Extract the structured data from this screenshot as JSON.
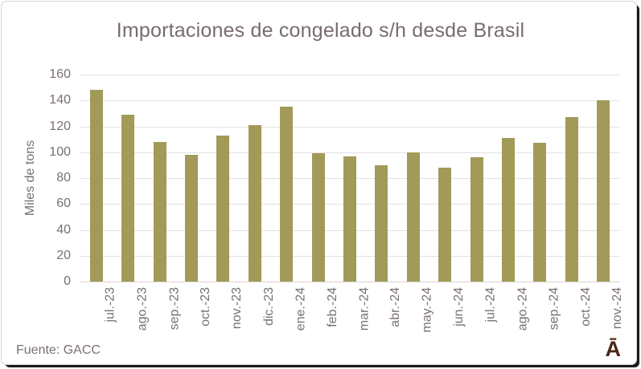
{
  "title": "Importaciones de congelado s/h desde Brasil",
  "source_note": "Fuente: GACC",
  "logo_glyph": "Ā",
  "colors": {
    "bar": "#a29a58",
    "text": "#7b6f6f",
    "title_text": "#786c6c",
    "gridline": "#e4e0e0",
    "logo": "#4a2a16",
    "card_border": "#dad6d6",
    "card_edge_shadow": "#1b1b1b"
  },
  "chart_data": {
    "type": "bar",
    "title": "Importaciones de congelado s/h desde Brasil",
    "xlabel": "",
    "ylabel": "Miles de tons",
    "categories": [
      "jul.-23",
      "ago.-23",
      "sep.-23",
      "oct.-23",
      "nov.-23",
      "dic.-23",
      "ene.-24",
      "feb.-24",
      "mar.-24",
      "abr.-24",
      "may.-24",
      "jun.-24",
      "jul.-24",
      "ago.-24",
      "sep.-24",
      "oct.-24",
      "nov.-24"
    ],
    "values": [
      148,
      129,
      108,
      98,
      113,
      121,
      135,
      99,
      97,
      90,
      100,
      88,
      96,
      111,
      107,
      127,
      140
    ],
    "ylim": [
      0,
      160
    ],
    "yticks": [
      0,
      20,
      40,
      60,
      80,
      100,
      120,
      140,
      160
    ],
    "grid": true,
    "legend": "none",
    "bar_color": "#a29a58"
  }
}
